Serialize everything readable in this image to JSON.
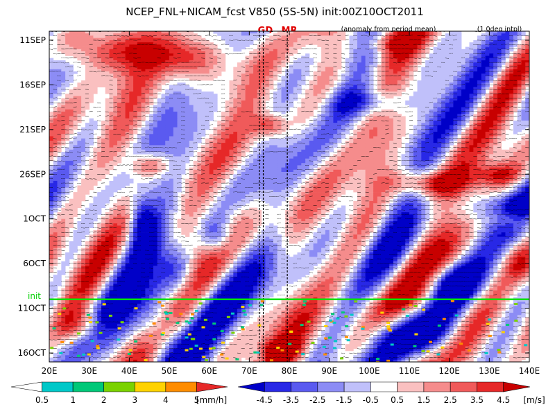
{
  "title": "NCEP_FNL+NICAM_fcst V850 (5S-5N) init:00Z10OCT2011",
  "subtitle_left": "(anomaly from period mean)",
  "subtitle_right": "(1.0deg intpl)",
  "markers": [
    {
      "label": "GD",
      "lon": 74
    },
    {
      "label": "MR",
      "lon": 80
    }
  ],
  "init_label": "init",
  "chart_data": {
    "type": "heatmap",
    "title": "NCEP_FNL+NICAM_fcst V850 (5S-5N) init:00Z10OCT2011",
    "variable": "V850 anomaly",
    "x_ticks": [
      "20E",
      "30E",
      "40E",
      "50E",
      "60E",
      "70E",
      "80E",
      "90E",
      "100E",
      "110E",
      "120E",
      "130E",
      "140E"
    ],
    "x_range": [
      20,
      140
    ],
    "y_ticks": [
      "11SEP",
      "16SEP",
      "21SEP",
      "26SEP",
      "1OCT",
      "6OCT",
      "11OCT",
      "16OCT"
    ],
    "y_tick_days": [
      0,
      5,
      10,
      15,
      20,
      25,
      30,
      35
    ],
    "y_range_days": [
      -1,
      36
    ],
    "init_day": 29,
    "marker_lons": [
      72.5,
      73.5,
      79.5
    ],
    "wind_colorbar": {
      "levels": [
        "-4.5",
        "-3.5",
        "-2.5",
        "-1.5",
        "-0.5",
        "0.5",
        "1.5",
        "2.5",
        "3.5",
        "4.5"
      ],
      "unit": "[m/s]",
      "colors": [
        "#0000c8",
        "#2828e6",
        "#5a5af0",
        "#8c8cf5",
        "#c0c0fa",
        "#ffffff",
        "#fac0c0",
        "#f58c8c",
        "#f05a5a",
        "#e62828",
        "#c80000"
      ]
    },
    "rain_colorbar": {
      "levels": [
        "0.5",
        "1",
        "2",
        "3",
        "4",
        "5"
      ],
      "unit": "[mm/h]",
      "colors": [
        "#ffffff",
        "#00c8c8",
        "#00c878",
        "#7ad200",
        "#ffd200",
        "#ff8c00",
        "#e62828"
      ]
    }
  }
}
